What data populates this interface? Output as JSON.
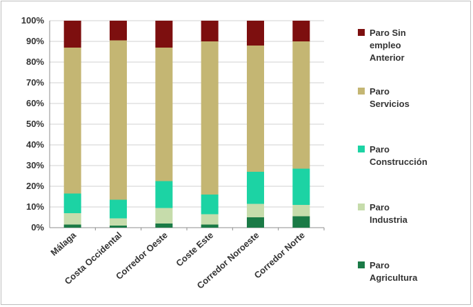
{
  "chart_data": {
    "type": "bar",
    "stacked": true,
    "percent": true,
    "categories": [
      "Málaga",
      "Costa Occidental",
      "Corredor Oeste",
      "Coste Este",
      "Corredor Noroeste",
      "Corredor Norte"
    ],
    "ylim": [
      0,
      100
    ],
    "yticks": [
      "0%",
      "10%",
      "20%",
      "30%",
      "40%",
      "50%",
      "60%",
      "70%",
      "80%",
      "90%",
      "100%"
    ],
    "grid": true,
    "legend_position": "right",
    "series": [
      {
        "name": "Paro Agricultura",
        "legend_lines": [
          "Paro",
          "Agricultura"
        ],
        "color": "#1a7a46",
        "values": [
          1.5,
          1.0,
          2.0,
          1.5,
          5.0,
          5.5
        ]
      },
      {
        "name": "Paro Industria",
        "legend_lines": [
          "Paro",
          "Industria"
        ],
        "color": "#c6dcab",
        "values": [
          5.5,
          3.5,
          7.5,
          5.0,
          6.5,
          5.5
        ]
      },
      {
        "name": "Paro Construcción",
        "legend_lines": [
          "Paro",
          "Construcción"
        ],
        "color": "#1cd3a4",
        "values": [
          9.5,
          9.0,
          13.0,
          9.5,
          15.5,
          17.5
        ]
      },
      {
        "name": "Paro Servicios",
        "legend_lines": [
          "Paro",
          "Servicios"
        ],
        "color": "#c4b673",
        "values": [
          70.5,
          77.0,
          64.5,
          74.0,
          61.0,
          61.5
        ]
      },
      {
        "name": "Paro Sin empleo Anterior",
        "legend_lines": [
          "Paro Sin",
          "empleo",
          "Anterior"
        ],
        "color": "#7d0f0f",
        "values": [
          13.0,
          9.5,
          13.0,
          10.0,
          12.0,
          10.0
        ]
      }
    ]
  }
}
